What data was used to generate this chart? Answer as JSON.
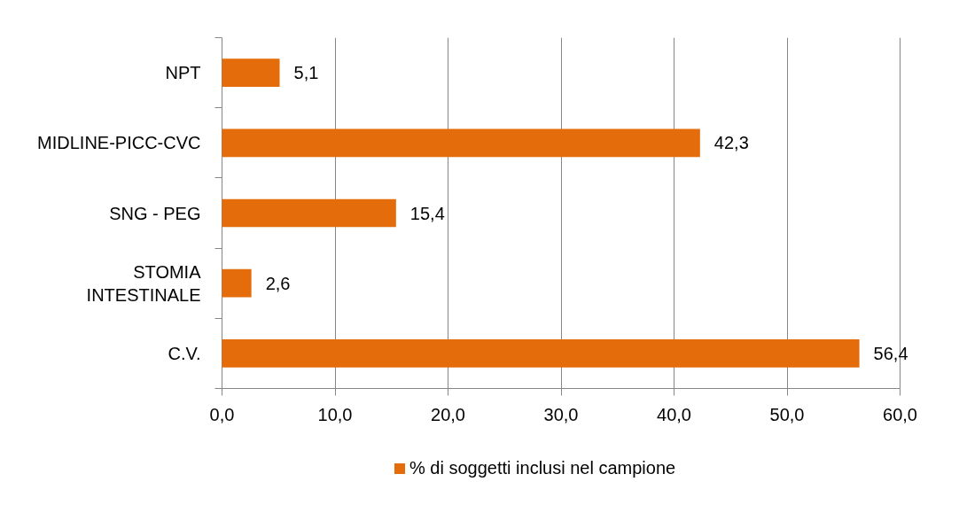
{
  "chart_data": {
    "type": "bar",
    "orientation": "horizontal",
    "categories": [
      "NPT",
      "MIDLINE-PICC-CVC",
      "SNG - PEG",
      "STOMIA INTESTINALE",
      "C.V."
    ],
    "series": [
      {
        "name": "% di soggetti inclusi nel campione",
        "color": "#e46c0a",
        "values": [
          5.1,
          42.3,
          15.4,
          2.6,
          56.4
        ],
        "value_labels": [
          "5,1",
          "42,3",
          "15,4",
          "2,6",
          "56,4"
        ]
      }
    ],
    "xlim": [
      0,
      60
    ],
    "xticks": [
      {
        "value": 0,
        "label": "0,0"
      },
      {
        "value": 10,
        "label": "10,0"
      },
      {
        "value": 20,
        "label": "20,0"
      },
      {
        "value": 30,
        "label": "30,0"
      },
      {
        "value": 40,
        "label": "40,0"
      },
      {
        "value": 50,
        "label": "50,0"
      },
      {
        "value": 60,
        "label": "60,0"
      }
    ],
    "grid": "x",
    "legend": "bottom"
  }
}
